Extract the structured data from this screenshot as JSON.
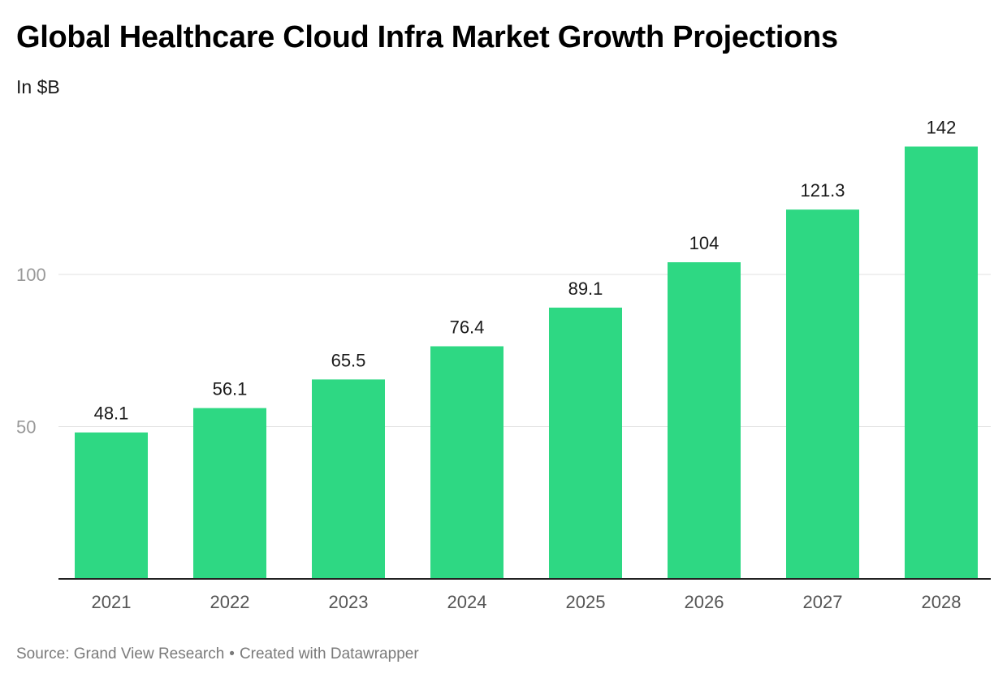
{
  "title": "Global Healthcare Cloud Infra Market Growth Projections",
  "subtitle": "In $B",
  "footer": {
    "source": "Source: Grand View Research",
    "separator": "•",
    "credit": "Created with Datawrapper"
  },
  "colors": {
    "bar": "#2ed883",
    "gridline": "#e0e0e0",
    "baseline": "#222222",
    "tick_label": "#999999",
    "category_label": "#555555",
    "value_label": "#1a1a1a"
  },
  "chart_data": {
    "type": "bar",
    "title": "Global Healthcare Cloud Infra Market Growth Projections",
    "subtitle": "In $B",
    "xlabel": "",
    "ylabel": "",
    "categories": [
      "2021",
      "2022",
      "2023",
      "2024",
      "2025",
      "2026",
      "2027",
      "2028"
    ],
    "values": [
      48.1,
      56.1,
      65.5,
      76.4,
      89.1,
      104,
      121.3,
      142
    ],
    "value_labels": [
      "48.1",
      "56.1",
      "65.5",
      "76.4",
      "89.1",
      "104",
      "121.3",
      "142"
    ],
    "yticks": [
      50,
      100
    ],
    "ytick_labels": [
      "50",
      "100"
    ],
    "ylim": [
      0,
      142
    ],
    "grid": true,
    "legend": "none"
  }
}
